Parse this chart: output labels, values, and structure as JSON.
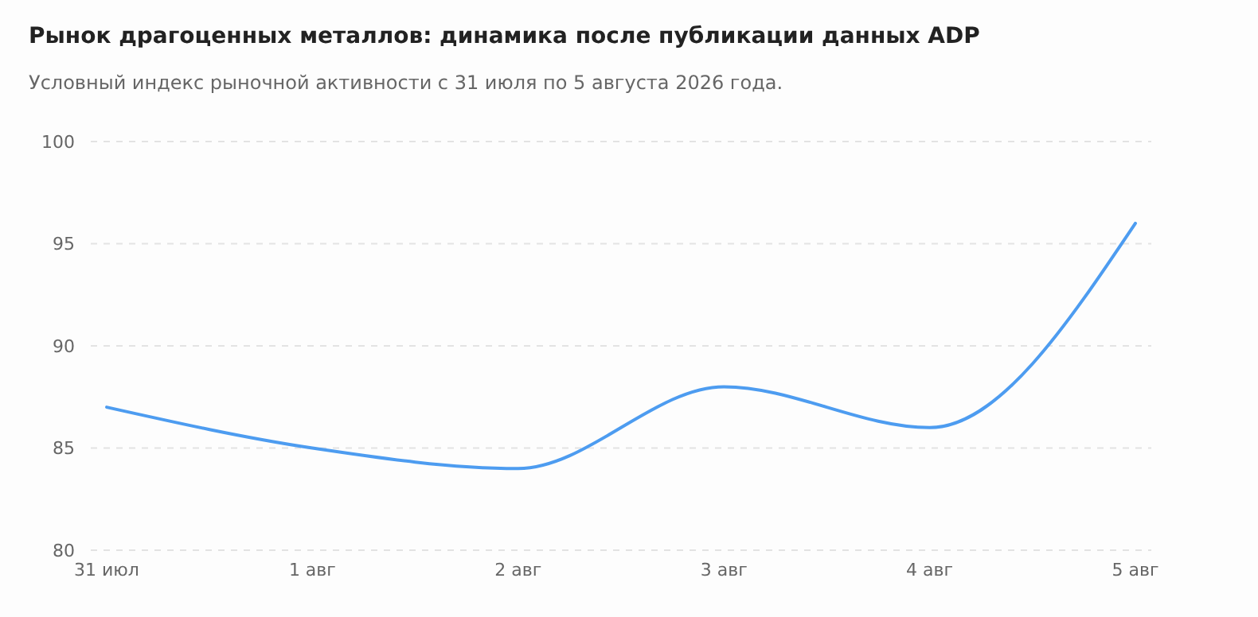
{
  "chart_data": {
    "type": "line",
    "title": "Рынок драгоценных металлов: динамика после публикации данных ADP",
    "subtitle": "Условный индекс рыночной активности с 31 июля по 5 августа 2026 года.",
    "categories": [
      "31 июл",
      "1 авг",
      "2 авг",
      "3 авг",
      "4 авг",
      "5 авг"
    ],
    "series": [
      {
        "color": "#4d9cf0",
        "values": [
          87,
          85,
          84,
          88,
          86,
          96
        ]
      }
    ],
    "ylim": [
      80,
      100
    ],
    "yticks": [
      80,
      85,
      90,
      95,
      100
    ],
    "grid": "y",
    "marker": "none",
    "line_style": "solid"
  }
}
